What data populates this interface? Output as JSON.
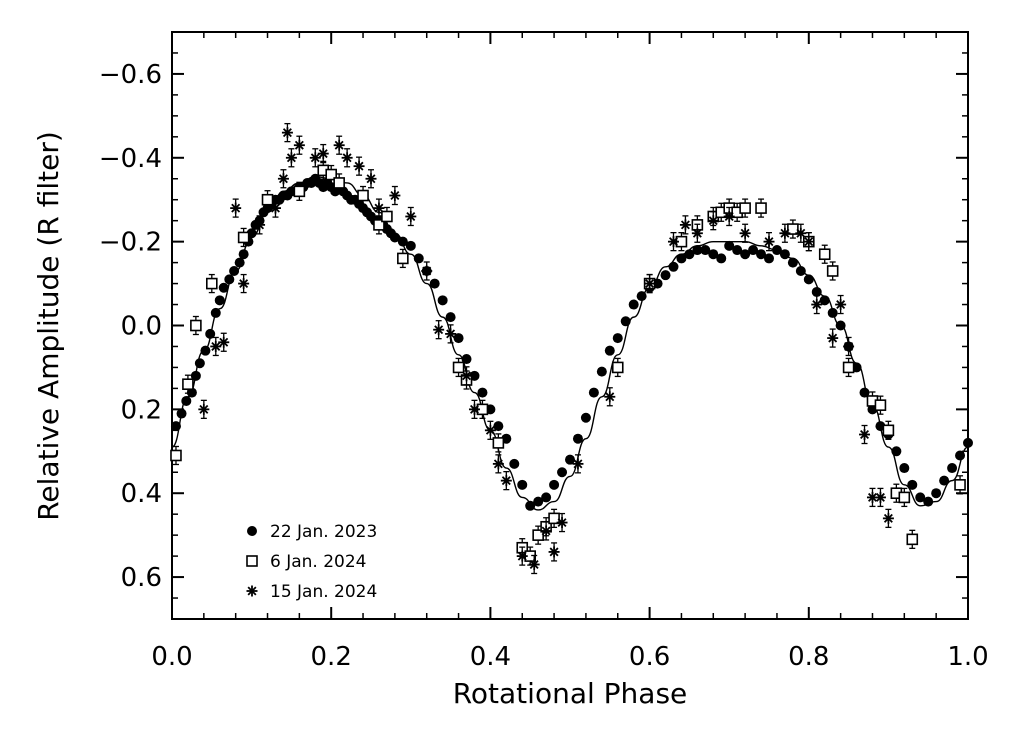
{
  "chart_data": {
    "type": "scatter",
    "title": "",
    "xlabel": "Rotational Phase",
    "ylabel": "Relative Amplitude (R filter)",
    "xlim": [
      0.0,
      1.0
    ],
    "ylim": [
      0.7,
      -0.7
    ],
    "y_inverted": true,
    "grid": false,
    "legend_position": "bottom-left",
    "x_ticks": [
      {
        "value": 0.0,
        "label": "0.0"
      },
      {
        "value": 0.2,
        "label": "0.2"
      },
      {
        "value": 0.4,
        "label": "0.4"
      },
      {
        "value": 0.6,
        "label": "0.6"
      },
      {
        "value": 0.8,
        "label": "0.8"
      },
      {
        "value": 1.0,
        "label": "1.0"
      }
    ],
    "y_ticks": [
      {
        "value": -0.6,
        "label": "−0.6"
      },
      {
        "value": -0.4,
        "label": "−0.4"
      },
      {
        "value": -0.2,
        "label": "−0.2"
      },
      {
        "value": 0.0,
        "label": "0.0"
      },
      {
        "value": 0.2,
        "label": "0.2"
      },
      {
        "value": 0.4,
        "label": "0.4"
      },
      {
        "value": 0.6,
        "label": "0.6"
      }
    ],
    "series": [
      {
        "name": "22 Jan. 2023",
        "marker": "filled-circle",
        "points": [
          [
            0.005,
            0.24
          ],
          [
            0.012,
            0.21
          ],
          [
            0.018,
            0.18
          ],
          [
            0.025,
            0.16
          ],
          [
            0.03,
            0.12
          ],
          [
            0.035,
            0.09
          ],
          [
            0.042,
            0.06
          ],
          [
            0.048,
            0.02
          ],
          [
            0.055,
            -0.03
          ],
          [
            0.06,
            -0.06
          ],
          [
            0.065,
            -0.09
          ],
          [
            0.072,
            -0.11
          ],
          [
            0.078,
            -0.13
          ],
          [
            0.085,
            -0.15
          ],
          [
            0.09,
            -0.17
          ],
          [
            0.096,
            -0.2
          ],
          [
            0.1,
            -0.22
          ],
          [
            0.105,
            -0.24
          ],
          [
            0.11,
            -0.25
          ],
          [
            0.115,
            -0.27
          ],
          [
            0.12,
            -0.28
          ],
          [
            0.125,
            -0.29
          ],
          [
            0.13,
            -0.3
          ],
          [
            0.135,
            -0.3
          ],
          [
            0.14,
            -0.31
          ],
          [
            0.145,
            -0.31
          ],
          [
            0.15,
            -0.32
          ],
          [
            0.155,
            -0.32
          ],
          [
            0.16,
            -0.33
          ],
          [
            0.165,
            -0.33
          ],
          [
            0.17,
            -0.34
          ],
          [
            0.175,
            -0.34
          ],
          [
            0.18,
            -0.35
          ],
          [
            0.185,
            -0.34
          ],
          [
            0.19,
            -0.33
          ],
          [
            0.195,
            -0.34
          ],
          [
            0.2,
            -0.33
          ],
          [
            0.205,
            -0.32
          ],
          [
            0.21,
            -0.33
          ],
          [
            0.215,
            -0.32
          ],
          [
            0.22,
            -0.31
          ],
          [
            0.225,
            -0.3
          ],
          [
            0.23,
            -0.3
          ],
          [
            0.235,
            -0.29
          ],
          [
            0.24,
            -0.28
          ],
          [
            0.245,
            -0.27
          ],
          [
            0.25,
            -0.26
          ],
          [
            0.255,
            -0.25
          ],
          [
            0.26,
            -0.25
          ],
          [
            0.265,
            -0.24
          ],
          [
            0.27,
            -0.23
          ],
          [
            0.275,
            -0.22
          ],
          [
            0.28,
            -0.21
          ],
          [
            0.29,
            -0.2
          ],
          [
            0.3,
            -0.19
          ],
          [
            0.31,
            -0.16
          ],
          [
            0.32,
            -0.13
          ],
          [
            0.33,
            -0.1
          ],
          [
            0.34,
            -0.06
          ],
          [
            0.35,
            -0.02
          ],
          [
            0.36,
            0.03
          ],
          [
            0.37,
            0.08
          ],
          [
            0.38,
            0.12
          ],
          [
            0.39,
            0.16
          ],
          [
            0.4,
            0.2
          ],
          [
            0.41,
            0.24
          ],
          [
            0.42,
            0.27
          ],
          [
            0.43,
            0.33
          ],
          [
            0.44,
            0.38
          ],
          [
            0.45,
            0.43
          ],
          [
            0.46,
            0.42
          ],
          [
            0.47,
            0.41
          ],
          [
            0.48,
            0.38
          ],
          [
            0.49,
            0.35
          ],
          [
            0.5,
            0.32
          ],
          [
            0.51,
            0.27
          ],
          [
            0.52,
            0.22
          ],
          [
            0.53,
            0.16
          ],
          [
            0.54,
            0.11
          ],
          [
            0.55,
            0.06
          ],
          [
            0.56,
            0.03
          ],
          [
            0.57,
            -0.01
          ],
          [
            0.58,
            -0.05
          ],
          [
            0.59,
            -0.07
          ],
          [
            0.6,
            -0.09
          ],
          [
            0.61,
            -0.1
          ],
          [
            0.62,
            -0.12
          ],
          [
            0.63,
            -0.14
          ],
          [
            0.64,
            -0.16
          ],
          [
            0.65,
            -0.17
          ],
          [
            0.66,
            -0.18
          ],
          [
            0.67,
            -0.18
          ],
          [
            0.68,
            -0.17
          ],
          [
            0.69,
            -0.16
          ],
          [
            0.7,
            -0.19
          ],
          [
            0.71,
            -0.18
          ],
          [
            0.72,
            -0.17
          ],
          [
            0.73,
            -0.18
          ],
          [
            0.74,
            -0.17
          ],
          [
            0.75,
            -0.16
          ],
          [
            0.76,
            -0.18
          ],
          [
            0.77,
            -0.17
          ],
          [
            0.78,
            -0.15
          ],
          [
            0.79,
            -0.13
          ],
          [
            0.8,
            -0.11
          ],
          [
            0.81,
            -0.08
          ],
          [
            0.82,
            -0.06
          ],
          [
            0.83,
            -0.03
          ],
          [
            0.84,
            0.0
          ],
          [
            0.85,
            0.05
          ],
          [
            0.86,
            0.1
          ],
          [
            0.87,
            0.16
          ],
          [
            0.88,
            0.2
          ],
          [
            0.89,
            0.24
          ],
          [
            0.9,
            0.26
          ],
          [
            0.91,
            0.3
          ],
          [
            0.92,
            0.34
          ],
          [
            0.93,
            0.38
          ],
          [
            0.94,
            0.41
          ],
          [
            0.95,
            0.42
          ],
          [
            0.96,
            0.4
          ],
          [
            0.97,
            0.37
          ],
          [
            0.98,
            0.34
          ],
          [
            0.99,
            0.31
          ],
          [
            1.0,
            0.28
          ]
        ]
      },
      {
        "name": "6 Jan. 2024",
        "marker": "open-square",
        "points": [
          [
            0.005,
            0.31
          ],
          [
            0.02,
            0.14
          ],
          [
            0.03,
            0.0
          ],
          [
            0.05,
            -0.1
          ],
          [
            0.09,
            -0.21
          ],
          [
            0.12,
            -0.3
          ],
          [
            0.16,
            -0.32
          ],
          [
            0.19,
            -0.37
          ],
          [
            0.2,
            -0.36
          ],
          [
            0.21,
            -0.34
          ],
          [
            0.24,
            -0.31
          ],
          [
            0.26,
            -0.24
          ],
          [
            0.27,
            -0.26
          ],
          [
            0.29,
            -0.16
          ],
          [
            0.36,
            0.1
          ],
          [
            0.37,
            0.13
          ],
          [
            0.39,
            0.2
          ],
          [
            0.41,
            0.28
          ],
          [
            0.44,
            0.53
          ],
          [
            0.45,
            0.55
          ],
          [
            0.46,
            0.5
          ],
          [
            0.47,
            0.48
          ],
          [
            0.48,
            0.46
          ],
          [
            0.56,
            0.1
          ],
          [
            0.6,
            -0.1
          ],
          [
            0.64,
            -0.2
          ],
          [
            0.66,
            -0.24
          ],
          [
            0.68,
            -0.26
          ],
          [
            0.69,
            -0.27
          ],
          [
            0.7,
            -0.28
          ],
          [
            0.71,
            -0.27
          ],
          [
            0.72,
            -0.28
          ],
          [
            0.74,
            -0.28
          ],
          [
            0.78,
            -0.23
          ],
          [
            0.8,
            -0.2
          ],
          [
            0.82,
            -0.17
          ],
          [
            0.83,
            -0.13
          ],
          [
            0.85,
            0.1
          ],
          [
            0.88,
            0.18
          ],
          [
            0.89,
            0.19
          ],
          [
            0.9,
            0.25
          ],
          [
            0.91,
            0.4
          ],
          [
            0.92,
            0.41
          ],
          [
            0.93,
            0.51
          ],
          [
            0.99,
            0.38
          ]
        ]
      },
      {
        "name": "15 Jan. 2024",
        "marker": "asterisk",
        "points": [
          [
            0.04,
            0.2
          ],
          [
            0.055,
            0.05
          ],
          [
            0.065,
            0.04
          ],
          [
            0.08,
            -0.28
          ],
          [
            0.09,
            -0.1
          ],
          [
            0.11,
            -0.24
          ],
          [
            0.13,
            -0.28
          ],
          [
            0.14,
            -0.35
          ],
          [
            0.145,
            -0.46
          ],
          [
            0.15,
            -0.4
          ],
          [
            0.16,
            -0.43
          ],
          [
            0.18,
            -0.4
          ],
          [
            0.19,
            -0.41
          ],
          [
            0.21,
            -0.43
          ],
          [
            0.22,
            -0.4
          ],
          [
            0.235,
            -0.38
          ],
          [
            0.25,
            -0.35
          ],
          [
            0.26,
            -0.28
          ],
          [
            0.28,
            -0.31
          ],
          [
            0.3,
            -0.26
          ],
          [
            0.32,
            -0.13
          ],
          [
            0.335,
            0.01
          ],
          [
            0.35,
            0.02
          ],
          [
            0.37,
            0.12
          ],
          [
            0.38,
            0.2
          ],
          [
            0.4,
            0.25
          ],
          [
            0.41,
            0.33
          ],
          [
            0.42,
            0.37
          ],
          [
            0.44,
            0.55
          ],
          [
            0.455,
            0.57
          ],
          [
            0.47,
            0.49
          ],
          [
            0.48,
            0.54
          ],
          [
            0.49,
            0.47
          ],
          [
            0.51,
            0.33
          ],
          [
            0.55,
            0.17
          ],
          [
            0.6,
            -0.1
          ],
          [
            0.63,
            -0.2
          ],
          [
            0.645,
            -0.24
          ],
          [
            0.66,
            -0.22
          ],
          [
            0.68,
            -0.25
          ],
          [
            0.7,
            -0.26
          ],
          [
            0.72,
            -0.22
          ],
          [
            0.75,
            -0.2
          ],
          [
            0.77,
            -0.22
          ],
          [
            0.79,
            -0.22
          ],
          [
            0.8,
            -0.2
          ],
          [
            0.81,
            -0.05
          ],
          [
            0.83,
            0.03
          ],
          [
            0.84,
            -0.05
          ],
          [
            0.85,
            0.05
          ],
          [
            0.87,
            0.26
          ],
          [
            0.88,
            0.41
          ],
          [
            0.89,
            0.41
          ],
          [
            0.9,
            0.46
          ]
        ]
      }
    ],
    "fit_curve": {
      "description_type": "model",
      "points": [
        [
          0.0,
          0.29
        ],
        [
          0.02,
          0.17
        ],
        [
          0.04,
          0.06
        ],
        [
          0.06,
          -0.04
        ],
        [
          0.08,
          -0.13
        ],
        [
          0.1,
          -0.21
        ],
        [
          0.12,
          -0.27
        ],
        [
          0.14,
          -0.32
        ],
        [
          0.16,
          -0.34
        ],
        [
          0.18,
          -0.355
        ],
        [
          0.2,
          -0.35
        ],
        [
          0.22,
          -0.34
        ],
        [
          0.24,
          -0.31
        ],
        [
          0.26,
          -0.27
        ],
        [
          0.28,
          -0.22
        ],
        [
          0.3,
          -0.17
        ],
        [
          0.32,
          -0.1
        ],
        [
          0.34,
          -0.02
        ],
        [
          0.36,
          0.07
        ],
        [
          0.38,
          0.16
        ],
        [
          0.4,
          0.25
        ],
        [
          0.42,
          0.34
        ],
        [
          0.44,
          0.41
        ],
        [
          0.46,
          0.44
        ],
        [
          0.48,
          0.42
        ],
        [
          0.5,
          0.36
        ],
        [
          0.52,
          0.27
        ],
        [
          0.54,
          0.17
        ],
        [
          0.56,
          0.07
        ],
        [
          0.58,
          -0.02
        ],
        [
          0.6,
          -0.09
        ],
        [
          0.62,
          -0.14
        ],
        [
          0.64,
          -0.17
        ],
        [
          0.66,
          -0.19
        ],
        [
          0.68,
          -0.2
        ],
        [
          0.7,
          -0.2
        ],
        [
          0.72,
          -0.2
        ],
        [
          0.74,
          -0.19
        ],
        [
          0.76,
          -0.18
        ],
        [
          0.78,
          -0.16
        ],
        [
          0.8,
          -0.12
        ],
        [
          0.82,
          -0.07
        ],
        [
          0.84,
          0.0
        ],
        [
          0.86,
          0.09
        ],
        [
          0.88,
          0.19
        ],
        [
          0.9,
          0.29
        ],
        [
          0.92,
          0.38
        ],
        [
          0.94,
          0.43
        ],
        [
          0.96,
          0.42
        ],
        [
          0.98,
          0.37
        ],
        [
          1.0,
          0.29
        ]
      ]
    }
  }
}
